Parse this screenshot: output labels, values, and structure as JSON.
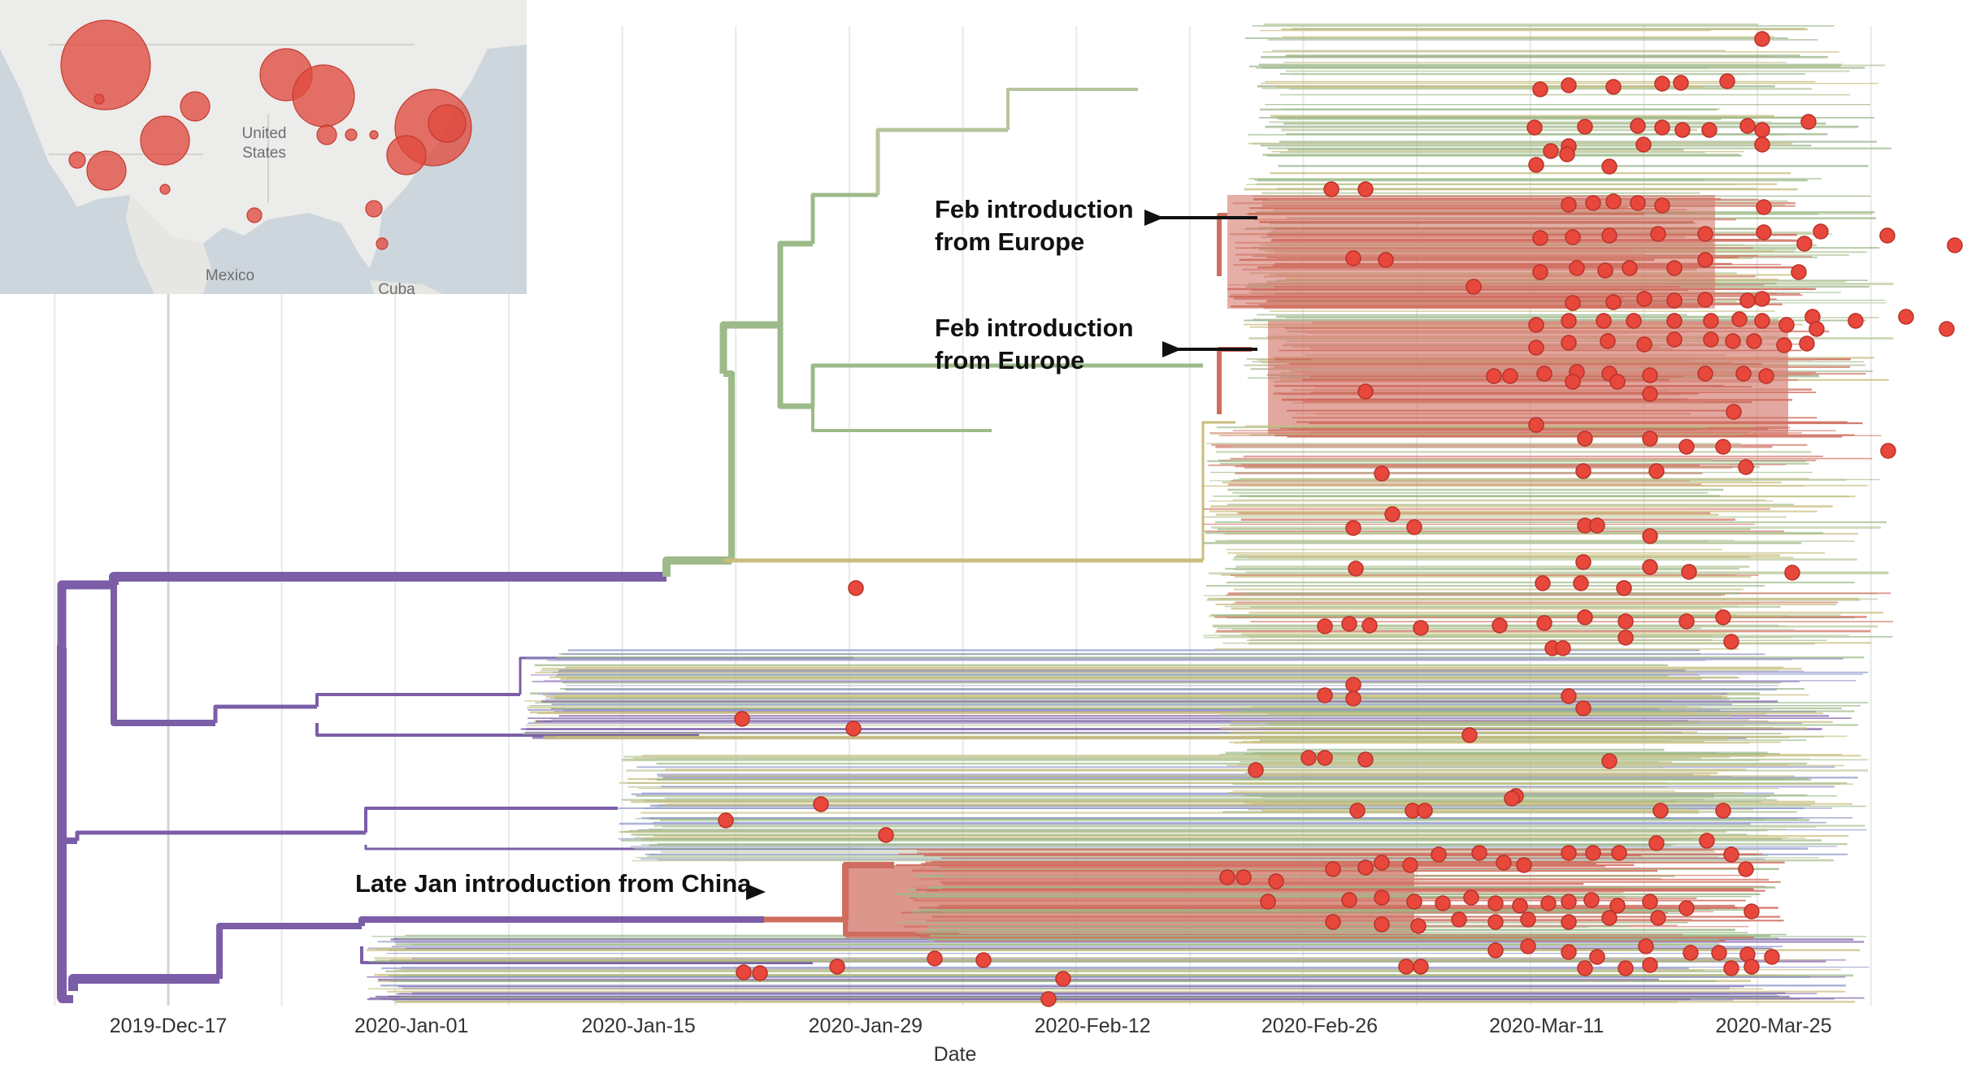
{
  "chart_data": {
    "type": "phylogenetic-tree",
    "title": "",
    "xlabel": "Date",
    "ylabel": "",
    "x_tick_labels": [
      "2019-Dec-17",
      "2020-Jan-01",
      "2020-Jan-15",
      "2020-Jan-29",
      "2020-Feb-12",
      "2020-Feb-26",
      "2020-Mar-11",
      "2020-Mar-25"
    ],
    "x_tick_days": [
      0,
      15,
      29,
      43,
      57,
      71,
      85,
      99
    ],
    "grid": true,
    "colors": {
      "root_lineage": "#7b5ea7",
      "europe_lineage": "#9dba8a",
      "us_introduction": "#cf6d5f",
      "us_tip_marker": "#e8473c",
      "other_lineage": "#c8bd7d"
    },
    "annotations": [
      {
        "lines": [
          "Feb introduction",
          "from Europe"
        ],
        "arrow": "right"
      },
      {
        "lines": [
          "Feb introduction",
          "from Europe"
        ],
        "arrow": "right"
      },
      {
        "lines": [
          "Late Jan introduction from China"
        ],
        "arrow": "right"
      }
    ],
    "inset_map": {
      "labels": [
        "United",
        "States",
        "Mexico",
        "Cuba"
      ],
      "marker_color": "#e04a3f"
    }
  }
}
